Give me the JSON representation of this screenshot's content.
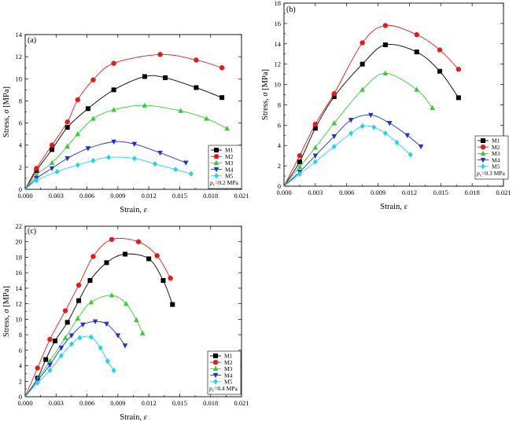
{
  "chart_data": [
    {
      "type": "line",
      "panel_label": "(a)",
      "pressure_label": {
        "base": "p",
        "sub": "c",
        "rest": "=0.2 MPa"
      },
      "xlabel": {
        "text": "Strain, ",
        "symbol": "ε"
      },
      "ylabel": {
        "text": "Stress, ",
        "symbol": "σ",
        "unit": " [MPa]"
      },
      "xlim": [
        0,
        0.021
      ],
      "ylim": [
        0,
        14
      ],
      "xticks": [
        "0.000",
        "0.003",
        "0.006",
        "0.009",
        "0.012",
        "0.015",
        "0.018",
        "0.021"
      ],
      "yticks": [
        "0",
        "2",
        "4",
        "6",
        "8",
        "10",
        "12",
        "14"
      ],
      "legend_position": "bottom-right",
      "series": [
        {
          "name": "M1",
          "color": "#000000",
          "marker": "square",
          "x": [
            0,
            0.0011,
            0.0026,
            0.0041,
            0.0061,
            0.0086,
            0.0116,
            0.0136,
            0.0166,
            0.0191
          ],
          "y": [
            0,
            1.7,
            3.6,
            5.6,
            7.3,
            9.0,
            10.2,
            10.1,
            9.2,
            8.3
          ]
        },
        {
          "name": "M2",
          "color": "#e41a1c",
          "marker": "circle",
          "x": [
            0,
            0.0011,
            0.0026,
            0.0041,
            0.0051,
            0.0066,
            0.0086,
            0.0131,
            0.0166,
            0.0191
          ],
          "y": [
            0,
            1.9,
            4.0,
            6.1,
            8.1,
            9.9,
            11.4,
            12.2,
            11.7,
            11.0
          ]
        },
        {
          "name": "M3",
          "color": "#33cc33",
          "marker": "triangle-up",
          "x": [
            0,
            0.0011,
            0.0026,
            0.0041,
            0.0051,
            0.0066,
            0.0086,
            0.0116,
            0.0151,
            0.0176,
            0.0196
          ],
          "y": [
            0,
            1.3,
            2.4,
            3.9,
            5.0,
            6.4,
            7.2,
            7.6,
            7.1,
            6.4,
            5.5
          ]
        },
        {
          "name": "M4",
          "color": "#1f2fd8",
          "marker": "triangle-down",
          "x": [
            0,
            0.0011,
            0.0026,
            0.0041,
            0.0061,
            0.0086,
            0.0106,
            0.0131,
            0.0156
          ],
          "y": [
            0,
            1.0,
            1.9,
            2.8,
            3.7,
            4.3,
            4.1,
            3.3,
            2.4
          ]
        },
        {
          "name": "M5",
          "color": "#22d3f0",
          "marker": "diamond",
          "x": [
            0,
            0.0011,
            0.0031,
            0.0051,
            0.0066,
            0.0081,
            0.0106,
            0.0126,
            0.0146,
            0.0161
          ],
          "y": [
            0,
            0.8,
            1.6,
            2.2,
            2.6,
            2.9,
            2.8,
            2.3,
            1.8,
            1.4
          ]
        }
      ]
    },
    {
      "type": "line",
      "panel_label": "(b)",
      "pressure_label": {
        "base": "p",
        "sub": "c",
        "rest": "=0.3 MPa"
      },
      "xlabel": {
        "text": "Strain, ",
        "symbol": "ε"
      },
      "ylabel": {
        "text": "Stress, ",
        "symbol": "σ",
        "unit": " [MPa]"
      },
      "xlim": [
        0,
        0.021
      ],
      "ylim": [
        0,
        18
      ],
      "xticks": [
        "0.000",
        "0.003",
        "0.006",
        "0.009",
        "0.012",
        "0.015",
        "0.018",
        "0.021"
      ],
      "yticks": [
        "0",
        "2",
        "4",
        "6",
        "8",
        "10",
        "12",
        "14",
        "16",
        "18"
      ],
      "legend_position": "bottom-right",
      "series": [
        {
          "name": "M1",
          "color": "#000000",
          "marker": "square",
          "x": [
            0,
            0.0015,
            0.003,
            0.0048,
            0.0075,
            0.0097,
            0.0127,
            0.0149,
            0.0167
          ],
          "y": [
            0,
            2.4,
            5.7,
            8.8,
            12.0,
            13.9,
            13.2,
            11.3,
            8.7
          ]
        },
        {
          "name": "M2",
          "color": "#e41a1c",
          "marker": "circle",
          "x": [
            0,
            0.0015,
            0.003,
            0.0048,
            0.0075,
            0.0097,
            0.0127,
            0.0149,
            0.0167
          ],
          "y": [
            0,
            3.0,
            6.1,
            9.1,
            14.1,
            15.8,
            14.9,
            13.4,
            11.5
          ]
        },
        {
          "name": "M3",
          "color": "#33cc33",
          "marker": "triangle-up",
          "x": [
            0,
            0.0015,
            0.003,
            0.0048,
            0.0075,
            0.0097,
            0.0127,
            0.0142
          ],
          "y": [
            0,
            1.9,
            3.8,
            6.2,
            9.5,
            11.1,
            9.5,
            7.7
          ]
        },
        {
          "name": "M4",
          "color": "#1f2fd8",
          "marker": "triangle-down",
          "x": [
            0,
            0.0015,
            0.003,
            0.0048,
            0.0064,
            0.0083,
            0.0101,
            0.0118,
            0.0131
          ],
          "y": [
            0,
            1.4,
            3.0,
            4.9,
            6.5,
            7.0,
            6.2,
            5.0,
            3.9
          ]
        },
        {
          "name": "M5",
          "color": "#22d3f0",
          "marker": "diamond",
          "x": [
            0,
            0.0015,
            0.003,
            0.0048,
            0.0064,
            0.0075,
            0.0086,
            0.0097,
            0.0108,
            0.0121
          ],
          "y": [
            0,
            1.2,
            2.4,
            3.9,
            5.2,
            5.9,
            5.8,
            5.2,
            4.3,
            3.1
          ]
        }
      ]
    },
    {
      "type": "line",
      "panel_label": "(c)",
      "pressure_label": {
        "base": "p",
        "sub": "c",
        "rest": "=0.4 MPa"
      },
      "xlabel": {
        "text": "Strain, ",
        "symbol": "ε"
      },
      "ylabel": {
        "text": "Stress, ",
        "symbol": "σ",
        "unit": " [MPa]"
      },
      "xlim": [
        0,
        0.021
      ],
      "ylim": [
        0,
        22
      ],
      "xticks": [
        "0.000",
        "0.003",
        "0.006",
        "0.009",
        "0.012",
        "0.015",
        "0.018",
        "0.021"
      ],
      "yticks": [
        "0",
        "2",
        "4",
        "6",
        "8",
        "10",
        "12",
        "14",
        "16",
        "18",
        "20",
        "22"
      ],
      "legend_position": "bottom-right",
      "series": [
        {
          "name": "M1",
          "color": "#000000",
          "marker": "square",
          "x": [
            0,
            0.0012,
            0.002,
            0.0029,
            0.0041,
            0.0052,
            0.0063,
            0.0079,
            0.0097,
            0.012,
            0.0134,
            0.0143
          ],
          "y": [
            0,
            2.4,
            4.8,
            7.2,
            9.6,
            12.4,
            15.0,
            17.3,
            18.4,
            17.8,
            15.0,
            11.9
          ]
        },
        {
          "name": "M2",
          "color": "#e41a1c",
          "marker": "circle",
          "x": [
            0,
            0.0012,
            0.0024,
            0.0039,
            0.0052,
            0.0066,
            0.0084,
            0.011,
            0.0128,
            0.0141
          ],
          "y": [
            0,
            3.7,
            7.4,
            11.1,
            14.4,
            18.1,
            20.3,
            20.0,
            18.2,
            15.3
          ]
        },
        {
          "name": "M3",
          "color": "#33cc33",
          "marker": "triangle-up",
          "x": [
            0,
            0.0012,
            0.0024,
            0.0039,
            0.0051,
            0.0064,
            0.0084,
            0.0098,
            0.0108,
            0.0114
          ],
          "y": [
            0,
            2.3,
            4.6,
            7.6,
            10.1,
            12.2,
            13.1,
            12.0,
            9.9,
            8.2
          ]
        },
        {
          "name": "M4",
          "color": "#1f2fd8",
          "marker": "triangle-down",
          "x": [
            0,
            0.0012,
            0.0024,
            0.0035,
            0.0045,
            0.0056,
            0.0068,
            0.0079,
            0.009,
            0.0097
          ],
          "y": [
            0,
            2.1,
            4.1,
            6.3,
            7.9,
            9.3,
            9.7,
            9.4,
            7.9,
            6.6
          ]
        },
        {
          "name": "M5",
          "color": "#22d3f0",
          "marker": "diamond",
          "x": [
            0,
            0.0012,
            0.0024,
            0.0035,
            0.0045,
            0.0053,
            0.0064,
            0.0073,
            0.008,
            0.0086
          ],
          "y": [
            0,
            1.8,
            3.4,
            5.3,
            6.8,
            7.6,
            7.7,
            6.3,
            4.6,
            3.4
          ]
        }
      ]
    }
  ]
}
